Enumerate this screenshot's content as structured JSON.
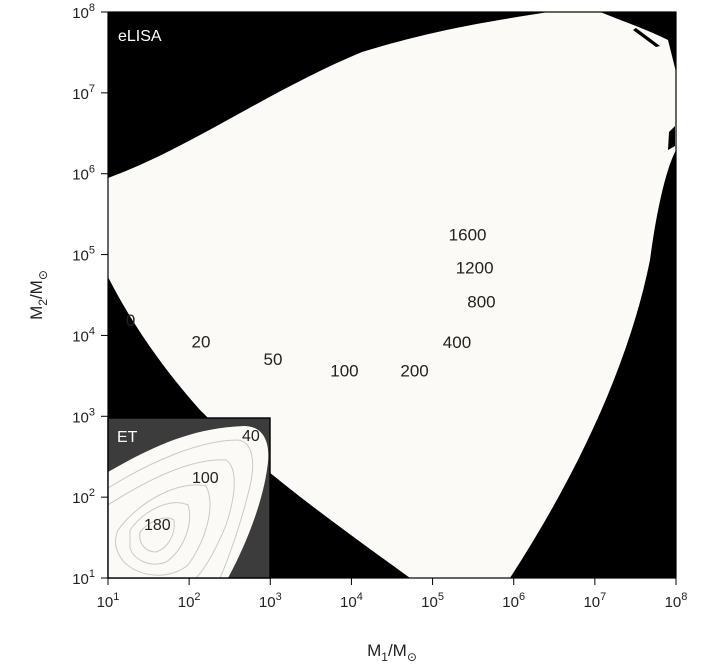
{
  "chart_data": [
    {
      "type": "heatmap",
      "panel_label": "eLISA",
      "xlabel_main": "M",
      "xlabel_sub": "1",
      "xlabel_tail": "/M",
      "xlabel_sun": "⊙",
      "ylabel_main": "M",
      "ylabel_sub": "2",
      "ylabel_tail": "/M",
      "ylabel_sun": "⊙",
      "x_scale": "log",
      "y_scale": "log",
      "xlim": [
        10,
        100000000
      ],
      "ylim": [
        10,
        100000000
      ],
      "x_ticks": [
        {
          "base": "10",
          "exp": "1"
        },
        {
          "base": "10",
          "exp": "2"
        },
        {
          "base": "10",
          "exp": "3"
        },
        {
          "base": "10",
          "exp": "4"
        },
        {
          "base": "10",
          "exp": "5"
        },
        {
          "base": "10",
          "exp": "6"
        },
        {
          "base": "10",
          "exp": "7"
        },
        {
          "base": "10",
          "exp": "8"
        }
      ],
      "y_ticks": [
        {
          "base": "10",
          "exp": "1"
        },
        {
          "base": "10",
          "exp": "2"
        },
        {
          "base": "10",
          "exp": "3"
        },
        {
          "base": "10",
          "exp": "4"
        },
        {
          "base": "10",
          "exp": "5"
        },
        {
          "base": "10",
          "exp": "6"
        },
        {
          "base": "10",
          "exp": "7"
        },
        {
          "base": "10",
          "exp": "8"
        }
      ],
      "region_colors": {
        "detectable": "#fbfaf6",
        "undetectable": "#000000"
      },
      "contour_labels": [
        {
          "text": "0",
          "x": 19,
          "y": 13000
        },
        {
          "text": "20",
          "x": 140,
          "y": 7100
        },
        {
          "text": "50",
          "x": 1080,
          "y": 4300
        },
        {
          "text": "100",
          "x": 8200,
          "y": 3100
        },
        {
          "text": "200",
          "x": 60000,
          "y": 3100
        },
        {
          "text": "400",
          "x": 200000,
          "y": 7000
        },
        {
          "text": "800",
          "x": 400000,
          "y": 22000
        },
        {
          "text": "1200",
          "x": 330000,
          "y": 58000
        },
        {
          "text": "1600",
          "x": 270000,
          "y": 150000
        }
      ]
    },
    {
      "type": "heatmap",
      "panel_label": "ET",
      "region_colors": {
        "background": "#3c3c3c",
        "detectable": "#fbfaf6",
        "contour_lines": "#c9c9c9"
      },
      "contour_labels": [
        {
          "text": "40"
        },
        {
          "text": "100"
        },
        {
          "text": "180"
        }
      ]
    }
  ]
}
